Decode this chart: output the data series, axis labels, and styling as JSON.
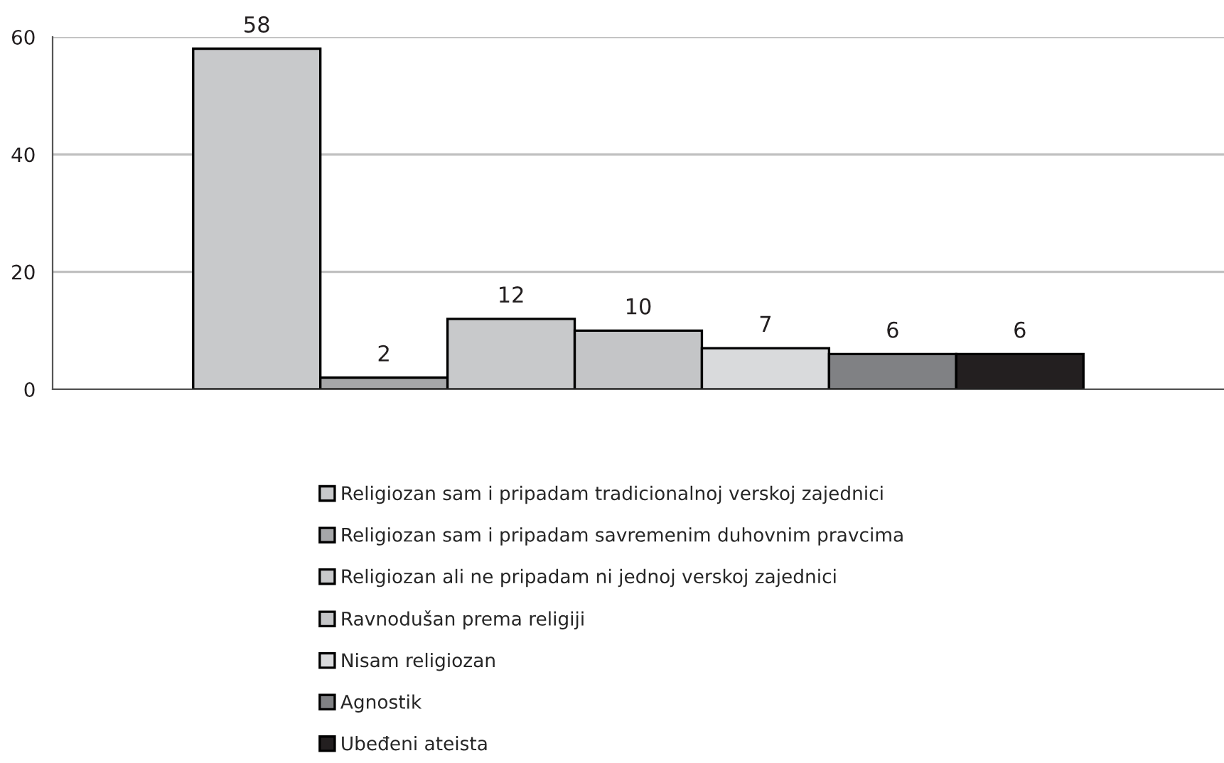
{
  "chart_data": {
    "type": "bar",
    "categories": [
      null
    ],
    "series": [
      {
        "name": "Religiozan sam i pripadam tradicionalnoj verskoj zajednici",
        "color": "#c8c9cb",
        "values": [
          58
        ]
      },
      {
        "name": "Religiozan sam i pripadam savremenim duhovnim pravcima",
        "color": "#a6a7a9",
        "values": [
          2
        ]
      },
      {
        "name": "Religiozan ali ne pripadam ni jednoj verskoj zajednici",
        "color": "#c8c9cb",
        "values": [
          12
        ]
      },
      {
        "name": "Ravnodušan prema religiji",
        "color": "#c4c5c7",
        "values": [
          10
        ]
      },
      {
        "name": "Nisam religiozan",
        "color": "#d9dadc",
        "values": [
          7
        ]
      },
      {
        "name": "Agnostik",
        "color": "#808184",
        "values": [
          6
        ]
      },
      {
        "name": "Ubeđeni ateista",
        "color": "#231f20",
        "values": [
          6
        ]
      }
    ],
    "ylim": [
      0,
      60
    ],
    "yticks": [
      0,
      20,
      40,
      60
    ],
    "grid": "y",
    "legend": "bottom",
    "data_labels": true
  }
}
